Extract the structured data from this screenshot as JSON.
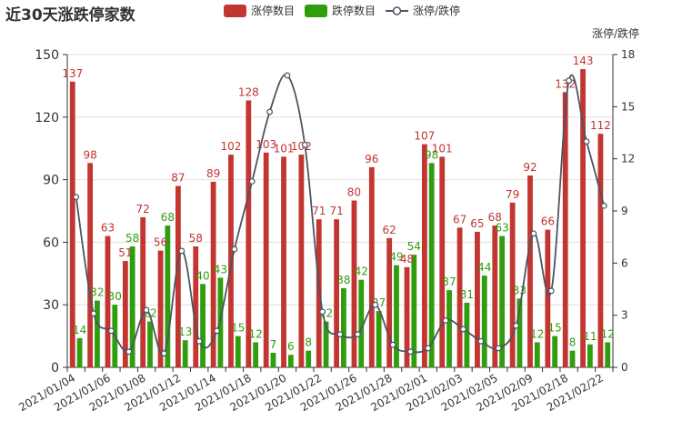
{
  "title": "近30天涨跌停家数",
  "legend": [
    {
      "label": "涨停数目",
      "color": "#c23531",
      "kind": "bar"
    },
    {
      "label": "跌停数目",
      "color": "#2f9e0e",
      "kind": "bar"
    },
    {
      "label": "涨停/跌停",
      "color": "#4a5564",
      "kind": "line"
    }
  ],
  "chart_data": {
    "type": "bar",
    "title": "近30天涨跌停家数",
    "y_left": {
      "min": 0,
      "max": 150,
      "ticks": [
        0,
        30,
        60,
        90,
        120,
        150
      ]
    },
    "y_right": {
      "label": "涨停/跌停",
      "min": 0,
      "max": 18,
      "ticks": [
        0,
        3,
        6,
        9,
        12,
        15,
        18
      ]
    },
    "x_tick_labels": [
      "2021/01/04",
      "2021/01/06",
      "2021/01/08",
      "2021/01/12",
      "2021/01/14",
      "2021/01/18",
      "2021/01/20",
      "2021/01/22",
      "2021/01/26",
      "2021/01/28",
      "2021/02/01",
      "2021/02/03",
      "2021/02/05",
      "2021/02/09",
      "2021/02/18",
      "2021/02/22"
    ],
    "series": [
      {
        "name": "涨停数目",
        "color": "#c23531",
        "axis": "left",
        "values": [
          137,
          98,
          63,
          51,
          72,
          56,
          87,
          58,
          89,
          102,
          128,
          103,
          101,
          102,
          71,
          71,
          80,
          96,
          62,
          48,
          107,
          101,
          67,
          65,
          68,
          79,
          92,
          66,
          132,
          143,
          112
        ]
      },
      {
        "name": "跌停数目",
        "color": "#2f9e0e",
        "axis": "left",
        "values": [
          14,
          32,
          30,
          58,
          22,
          68,
          13,
          40,
          43,
          15,
          12,
          7,
          6,
          8,
          22,
          38,
          42,
          27,
          49,
          54,
          98,
          37,
          31,
          44,
          63,
          33,
          12,
          15,
          8,
          11,
          12
        ]
      },
      {
        "name": "涨停/跌停",
        "color": "#4a5564",
        "axis": "right",
        "type": "line",
        "values": [
          9.8,
          3.1,
          2.1,
          0.9,
          3.3,
          0.8,
          6.7,
          1.5,
          2.1,
          6.8,
          10.7,
          14.7,
          16.8,
          12.8,
          3.2,
          1.9,
          1.9,
          3.6,
          1.3,
          0.9,
          1.1,
          2.7,
          2.2,
          1.5,
          1.1,
          2.4,
          7.7,
          4.4,
          16.5,
          13.0,
          9.3
        ]
      }
    ]
  }
}
